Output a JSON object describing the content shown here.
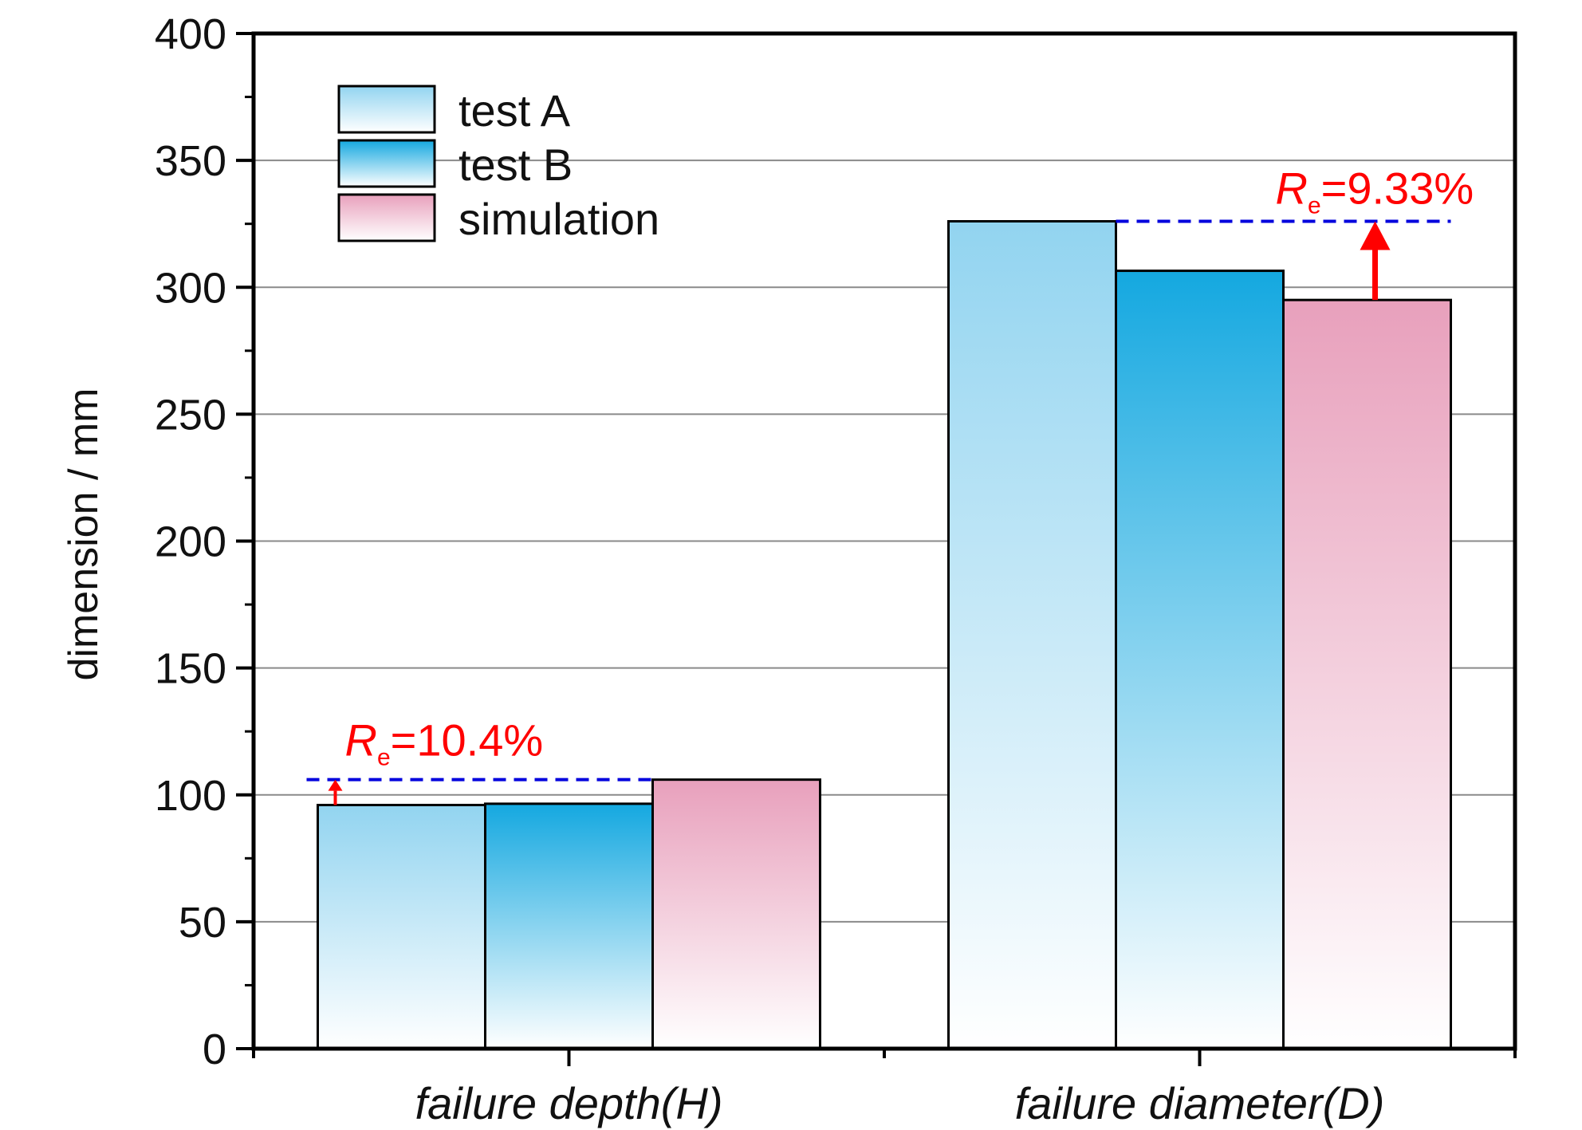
{
  "chart_data": {
    "type": "bar",
    "title": "",
    "ylabel": "dimension / mm",
    "xlabel": "",
    "ylim": [
      0,
      400
    ],
    "yticks": [
      0,
      50,
      100,
      150,
      200,
      250,
      300,
      350,
      400
    ],
    "grid": true,
    "legend_position": "top-left",
    "categories": [
      "failure depth(H)",
      "failure diameter(D)"
    ],
    "series": [
      {
        "name": "test A",
        "values": [
          96,
          326
        ],
        "color_top": "#92d4f0",
        "color_bottom": "#ffffff"
      },
      {
        "name": "test B",
        "values": [
          96.5,
          306.5
        ],
        "color_top": "#14a8e0",
        "color_bottom": "#ffffff"
      },
      {
        "name": "simulation",
        "values": [
          106,
          295
        ],
        "color_top": "#e8a0bc",
        "color_bottom": "#ffffff"
      }
    ],
    "annotations": [
      {
        "symbol": "R",
        "subscript": "e",
        "rest": "=10.4%",
        "category": 0,
        "from": 96,
        "to": 106,
        "color": "#ff0000",
        "line_color": "#0000dd"
      },
      {
        "symbol": "R",
        "subscript": "e",
        "rest": "=9.33%",
        "category": 1,
        "from": 295,
        "to": 326,
        "color": "#ff0000",
        "line_color": "#0000dd"
      }
    ]
  }
}
